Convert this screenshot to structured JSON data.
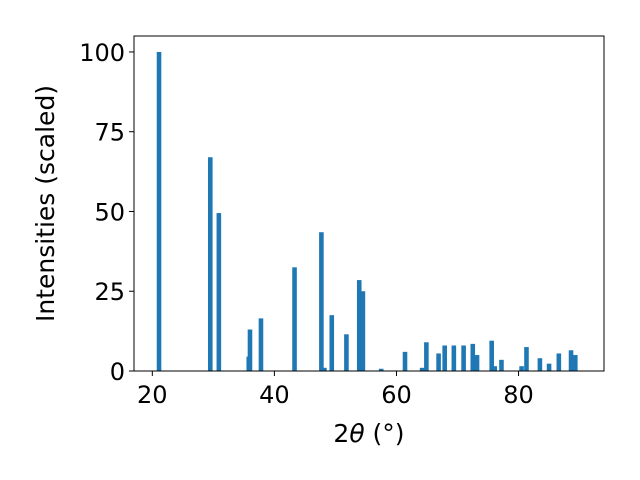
{
  "chart_data": {
    "type": "bar",
    "xlabel_prefix": "2",
    "xlabel_symbol": "θ",
    "xlabel_suffix": " (°)",
    "ylabel": "Intensities (scaled)",
    "xlim": [
      17,
      94
    ],
    "ylim": [
      0,
      105
    ],
    "bar_width": 0.75,
    "bar_color": "#1f77b4",
    "x_ticks": [
      20,
      40,
      60,
      80
    ],
    "y_ticks": [
      0,
      25,
      50,
      75,
      100
    ],
    "x": [
      21.1,
      29.5,
      30.9,
      35.8,
      36.0,
      37.8,
      43.3,
      47.7,
      48.2,
      49.4,
      51.8,
      53.9,
      54.5,
      57.5,
      61.4,
      64.2,
      64.9,
      66.9,
      67.9,
      69.4,
      71.0,
      72.5,
      73.2,
      75.6,
      76.1,
      77.2,
      80.5,
      81.3,
      83.5,
      85.0,
      86.6,
      88.6,
      89.3
    ],
    "values": [
      100,
      67,
      49.5,
      4.5,
      13,
      16.5,
      32.5,
      43.5,
      1,
      17.5,
      11.5,
      28.5,
      25,
      0.7,
      6,
      1,
      9,
      5.5,
      8,
      8,
      8,
      8.5,
      5,
      9.5,
      1.5,
      3.5,
      1.5,
      7.5,
      4,
      2.3,
      5.5,
      6.5,
      5
    ]
  }
}
